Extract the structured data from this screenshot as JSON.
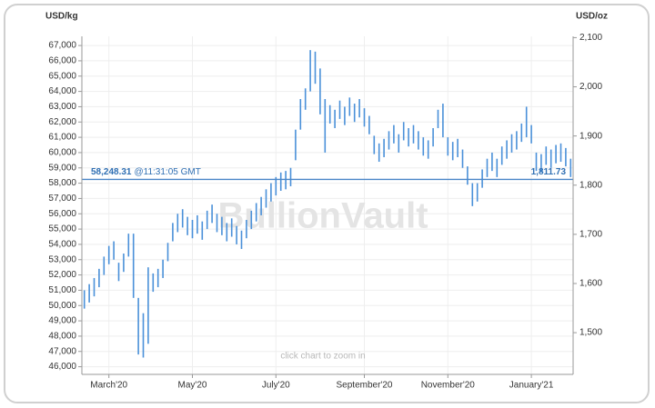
{
  "chart_data": {
    "type": "hilo",
    "y_label": "USD/kg",
    "y2_label": "USD/oz",
    "watermark": "BullionVault",
    "hint": "click chart to zoom in",
    "color": "#4a90d9",
    "line_color": "#4a86c8",
    "grid": true,
    "categories": [
      null,
      null,
      null,
      null,
      null,
      "March'20",
      null,
      null,
      null,
      null,
      null,
      null,
      null,
      null,
      null,
      null,
      null,
      null,
      null,
      null,
      null,
      null,
      "May'20",
      null,
      null,
      null,
      null,
      null,
      null,
      null,
      null,
      null,
      null,
      null,
      null,
      null,
      null,
      null,
      null,
      "July'20",
      null,
      null,
      null,
      null,
      null,
      null,
      null,
      null,
      null,
      null,
      null,
      null,
      null,
      null,
      null,
      null,
      null,
      "September'20",
      null,
      null,
      null,
      null,
      null,
      null,
      null,
      null,
      null,
      null,
      null,
      null,
      null,
      null,
      null,
      null,
      "November'20",
      null,
      null,
      null,
      null,
      null,
      null,
      null,
      null,
      null,
      null,
      null,
      null,
      null,
      null,
      null,
      null,
      "January'21",
      null,
      null,
      null,
      null,
      null,
      null,
      null,
      null
    ],
    "high": [
      51000,
      51400,
      51800,
      52400,
      53200,
      53900,
      54200,
      52800,
      53400,
      54700,
      54700,
      50500,
      49500,
      52500,
      52100,
      52400,
      53000,
      54100,
      55400,
      56000,
      56300,
      55800,
      55600,
      55900,
      55500,
      56200,
      56600,
      56000,
      55800,
      55400,
      55700,
      55200,
      54900,
      55600,
      56200,
      56700,
      57100,
      57600,
      58000,
      58400,
      58700,
      58800,
      59000,
      61500,
      63500,
      64200,
      66700,
      66600,
      65500,
      63500,
      63100,
      62800,
      63400,
      63000,
      63600,
      63200,
      63500,
      62900,
      62400,
      61100,
      60600,
      60900,
      61400,
      61800,
      61200,
      62000,
      61600,
      61800,
      61400,
      61000,
      60800,
      61600,
      62800,
      63200,
      61000,
      60700,
      60900,
      60200,
      59100,
      58000,
      58000,
      58900,
      59600,
      60000,
      59600,
      60400,
      60800,
      61200,
      61400,
      61900,
      63000,
      61800,
      60000,
      59900,
      60400,
      60200,
      60500,
      60600,
      60300,
      59600
    ],
    "low": [
      49800,
      50200,
      50600,
      51200,
      52000,
      52700,
      53000,
      51600,
      52200,
      53200,
      50500,
      46800,
      46600,
      47500,
      50900,
      51200,
      51800,
      52900,
      54200,
      54800,
      55100,
      54600,
      54400,
      54700,
      54300,
      55000,
      55400,
      54800,
      54600,
      54200,
      54500,
      54000,
      53700,
      54400,
      55000,
      55500,
      55900,
      56400,
      56800,
      57200,
      57500,
      57600,
      57800,
      59500,
      61500,
      62800,
      64000,
      64500,
      62500,
      60000,
      61900,
      61600,
      62200,
      61800,
      62400,
      62000,
      62300,
      61700,
      61200,
      59900,
      59400,
      59700,
      60200,
      60600,
      60000,
      60800,
      60400,
      60600,
      60200,
      59800,
      59600,
      60400,
      61600,
      61000,
      59800,
      59500,
      59700,
      59000,
      57900,
      56500,
      56800,
      57700,
      58400,
      58800,
      58400,
      59200,
      59600,
      60000,
      60200,
      60700,
      61000,
      60600,
      58800,
      58700,
      59200,
      59000,
      59300,
      59400,
      59100,
      58400
    ],
    "current": {
      "value": 58248.31,
      "label": "58,248.31",
      "time": "@11:31:05 GMT",
      "value_y2": 1811.73,
      "label_y2": "1,811.73"
    },
    "ylim": [
      45500,
      67600
    ],
    "yticks": [
      {
        "value": 46000,
        "label": "46,000"
      },
      {
        "value": 47000,
        "label": "47,000"
      },
      {
        "value": 48000,
        "label": "48,000"
      },
      {
        "value": 49000,
        "label": "49,000"
      },
      {
        "value": 50000,
        "label": "50,000"
      },
      {
        "value": 51000,
        "label": "51,000"
      },
      {
        "value": 52000,
        "label": "52,000"
      },
      {
        "value": 53000,
        "label": "53,000"
      },
      {
        "value": 54000,
        "label": "54,000"
      },
      {
        "value": 55000,
        "label": "55,000"
      },
      {
        "value": 56000,
        "label": "56,000"
      },
      {
        "value": 57000,
        "label": "57,000"
      },
      {
        "value": 58000,
        "label": "58,000"
      },
      {
        "value": 59000,
        "label": "59,000"
      },
      {
        "value": 60000,
        "label": "60,000"
      },
      {
        "value": 61000,
        "label": "61,000"
      },
      {
        "value": 62000,
        "label": "62,000"
      },
      {
        "value": 63000,
        "label": "63,000"
      },
      {
        "value": 64000,
        "label": "64,000"
      },
      {
        "value": 65000,
        "label": "65,000"
      },
      {
        "value": 66000,
        "label": "66,000"
      },
      {
        "value": 67000,
        "label": "67,000"
      }
    ],
    "y2lim": [
      1415.2,
      2102.6
    ],
    "y2ticks": [
      {
        "value": 1500,
        "label": "1,500"
      },
      {
        "value": 1600,
        "label": "1,600"
      },
      {
        "value": 1700,
        "label": "1,700"
      },
      {
        "value": 1800,
        "label": "1,800"
      },
      {
        "value": 1900,
        "label": "1,900"
      },
      {
        "value": 2000,
        "label": "2,000"
      },
      {
        "value": 2100,
        "label": "2,100"
      }
    ]
  }
}
